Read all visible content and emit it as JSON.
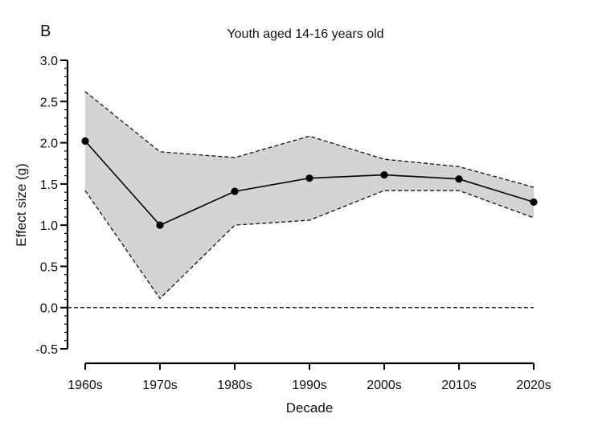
{
  "chart_data": {
    "type": "line",
    "panel_label": "B",
    "title": "Youth aged 14-16 years old",
    "xlabel": "Decade",
    "ylabel": "Effect size (g)",
    "categories": [
      "1960s",
      "1970s",
      "1980s",
      "1990s",
      "2000s",
      "2010s",
      "2020s"
    ],
    "series": [
      {
        "values": [
          2.02,
          1.0,
          1.41,
          1.57,
          1.61,
          1.56,
          1.28
        ],
        "lower": [
          1.42,
          0.11,
          1.0,
          1.06,
          1.42,
          1.42,
          1.09
        ],
        "upper": [
          2.62,
          1.89,
          1.82,
          2.08,
          1.8,
          1.71,
          1.46
        ]
      }
    ],
    "ylim": [
      -0.5,
      3.0
    ],
    "yticks": [
      "-0.5",
      "0.0",
      "0.5",
      "1.0",
      "1.5",
      "2.0",
      "2.5",
      "3.0"
    ],
    "reference_line": 0,
    "band_color": "#d4d4d4",
    "line_color": "#000000",
    "grid": false
  }
}
